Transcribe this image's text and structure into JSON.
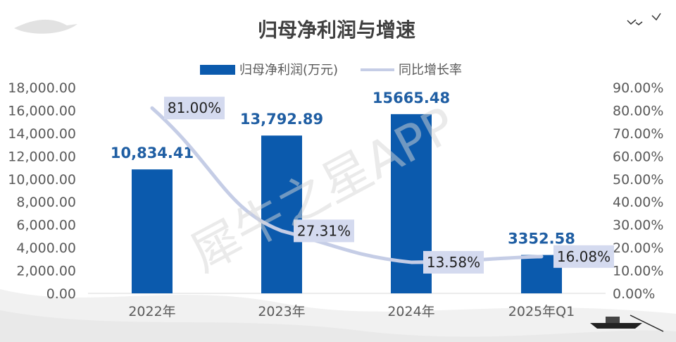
{
  "chart_data": {
    "type": "bar",
    "title": "归母净利润与增速",
    "categories": [
      "2022年",
      "2023年",
      "2024年",
      "2025年Q1"
    ],
    "series": [
      {
        "name": "归母净利润(万元)",
        "type": "bar",
        "axis": "left",
        "values": [
          10834.41,
          13792.89,
          15665.48,
          3352.58
        ],
        "labels": [
          "10,834.41",
          "13,792.89",
          "15665.48",
          "3352.58"
        ]
      },
      {
        "name": "同比增长率",
        "type": "line",
        "axis": "right",
        "values": [
          81.0,
          27.31,
          13.58,
          16.08
        ],
        "labels": [
          "81.00%",
          "27.31%",
          "13.58%",
          "16.08%"
        ]
      }
    ],
    "left_axis": {
      "ylim": [
        0,
        18000
      ],
      "ticks": [
        "0.00",
        "2,000.00",
        "4,000.00",
        "6,000.00",
        "8,000.00",
        "10,000.00",
        "12,000.00",
        "14,000.00",
        "16,000.00",
        "18,000.00"
      ]
    },
    "right_axis": {
      "ylim": [
        0,
        90
      ],
      "ticks": [
        "0.00%",
        "10.00%",
        "20.00%",
        "30.00%",
        "40.00%",
        "50.00%",
        "60.00%",
        "70.00%",
        "80.00%",
        "90.00%"
      ]
    },
    "legend_position": "top-center",
    "grid": false
  },
  "watermark": "犀牛之星APP",
  "colors": {
    "bar": "#0b5aad",
    "line": "#c5cde6",
    "title": "#404040",
    "bar_label": "#1f5ea3",
    "line_label_bg": "#d4daef",
    "axis_text": "#595959",
    "watermark": "#d6d6d6"
  }
}
